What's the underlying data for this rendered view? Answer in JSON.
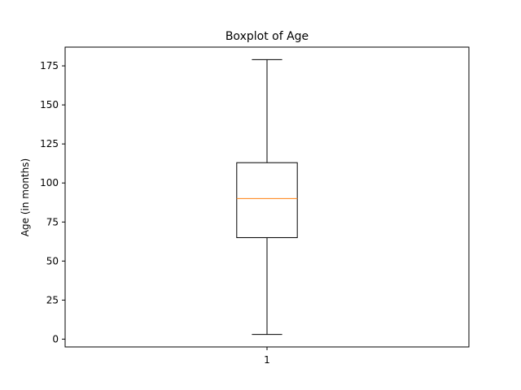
{
  "chart_data": {
    "type": "boxplot",
    "title": "Boxplot of Age",
    "xlabel": "",
    "ylabel": "Age (in months)",
    "ylim": [
      -5,
      187
    ],
    "yticks": [
      0,
      25,
      50,
      75,
      100,
      125,
      150,
      175
    ],
    "categories": [
      "1"
    ],
    "boxes": [
      {
        "category": "1",
        "whisker_low": 3,
        "q1": 65,
        "median": 90,
        "q3": 113,
        "whisker_high": 179
      }
    ],
    "grid": false,
    "colors": {
      "box": "#000000",
      "median": "#ff7f0e",
      "whisker": "#000000"
    }
  }
}
